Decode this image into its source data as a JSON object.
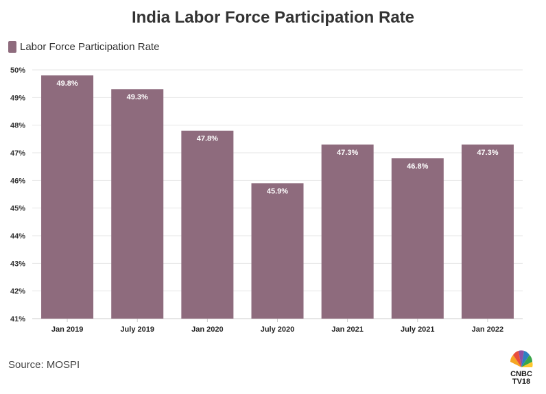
{
  "chart_data": {
    "type": "bar",
    "title": "India Labor Force Participation Rate",
    "categories": [
      "Jan 2019",
      "July 2019",
      "Jan 2020",
      "July 2020",
      "Jan 2021",
      "July 2021",
      "Jan 2022"
    ],
    "series": [
      {
        "name": "Labor Force Participation Rate",
        "values": [
          49.8,
          49.3,
          47.8,
          45.9,
          47.3,
          46.8,
          47.3
        ],
        "labels": [
          "49.8%",
          "49.3%",
          "47.8%",
          "45.9%",
          "47.3%",
          "46.8%",
          "47.3%"
        ]
      }
    ],
    "ylim": [
      41,
      50
    ],
    "yticks": [
      "41%",
      "42%",
      "43%",
      "44%",
      "45%",
      "46%",
      "47%",
      "48%",
      "49%",
      "50%"
    ],
    "xlabel": "",
    "ylabel": "",
    "grid": true,
    "legend": "top-left"
  },
  "colors": {
    "bar": "#8e6b7d",
    "grid": "#e6e6e6"
  },
  "source": "Source: MOSPI",
  "logo": {
    "line1": "CNBC",
    "line2": "TV18"
  }
}
